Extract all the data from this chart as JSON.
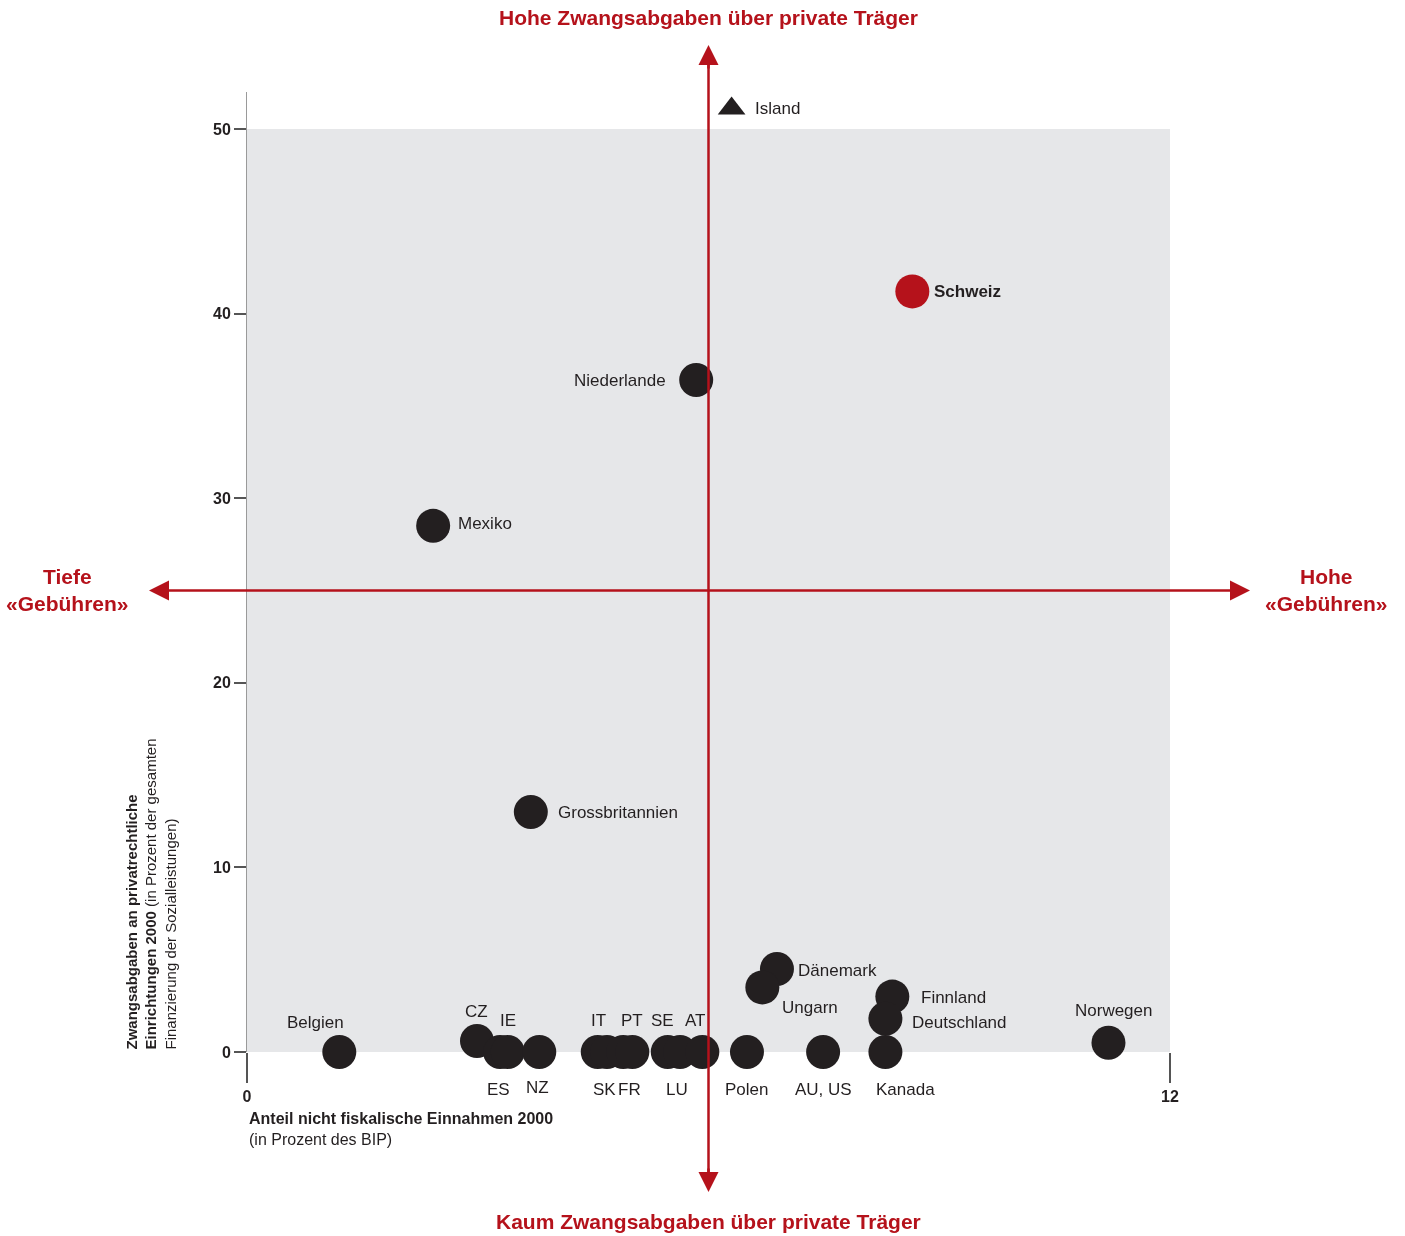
{
  "chart_data": {
    "type": "scatter",
    "xlabel": "Anteil nicht fiskalische Einnahmen 2000 (in Prozent des BIP)",
    "ylabel": "Zwangsabgaben an privatrechtliche Einrichtungen 2000 (in Prozent der gesamten Finanzierung der Sozialleistungen)",
    "xlim": [
      0,
      12
    ],
    "ylim": [
      0,
      52
    ],
    "xticks": [
      0,
      12
    ],
    "yticks": [
      0,
      10,
      20,
      30,
      40,
      50
    ],
    "marker": "circle",
    "bands": [
      {
        "axis": "y",
        "from": 0,
        "to": 50,
        "color": "#e6e7e9"
      }
    ],
    "ref_lines": [
      {
        "axis": "x",
        "value": 6,
        "color": "#b5121b"
      },
      {
        "axis": "y",
        "value": 25,
        "color": "#b5121b"
      }
    ],
    "annotations": [
      "Hohe Zwangsabgaben über private Träger",
      "Kaum Zwangsabgaben über private Träger",
      "Tiefe\n«Gebühren»",
      "Hohe\n«Gebühren»"
    ],
    "series": [
      {
        "name": "Island",
        "color": "#231f20",
        "marker": "triangle",
        "x": [
          6.3
        ],
        "values": [
          51.1
        ]
      },
      {
        "name": "Schweiz",
        "color": "#b5121b",
        "x": [
          8.65
        ],
        "values": [
          41.2
        ]
      },
      {
        "name": "Niederlande",
        "color": "#231f20",
        "x": [
          5.84
        ],
        "values": [
          36.4
        ]
      },
      {
        "name": "Mexiko",
        "color": "#231f20",
        "x": [
          2.42
        ],
        "values": [
          28.5
        ]
      },
      {
        "name": "Grossbritannien",
        "color": "#231f20",
        "x": [
          3.69
        ],
        "values": [
          13.0
        ]
      },
      {
        "name": "Dänemark",
        "color": "#231f20",
        "x": [
          6.89
        ],
        "values": [
          4.5
        ]
      },
      {
        "name": "Ungarn",
        "color": "#231f20",
        "x": [
          6.7
        ],
        "values": [
          3.5
        ]
      },
      {
        "name": "Finnland",
        "color": "#231f20",
        "x": [
          8.39
        ],
        "values": [
          3.0
        ]
      },
      {
        "name": "Deutschland",
        "color": "#231f20",
        "x": [
          8.3
        ],
        "values": [
          1.8
        ]
      },
      {
        "name": "Norwegen",
        "color": "#231f20",
        "x": [
          11.2
        ],
        "values": [
          0.5
        ]
      },
      {
        "name": "Belgien",
        "color": "#231f20",
        "x": [
          1.2
        ],
        "values": [
          0
        ]
      },
      {
        "name": "CZ",
        "color": "#231f20",
        "x": [
          2.99
        ],
        "values": [
          0.6
        ]
      },
      {
        "name": "ES",
        "color": "#231f20",
        "x": [
          3.29
        ],
        "values": [
          0
        ]
      },
      {
        "name": "IE",
        "color": "#231f20",
        "x": [
          3.39
        ],
        "values": [
          0
        ]
      },
      {
        "name": "NZ",
        "color": "#231f20",
        "x": [
          3.8
        ],
        "values": [
          0
        ]
      },
      {
        "name": "IT",
        "color": "#231f20",
        "x": [
          4.56
        ],
        "values": [
          0
        ]
      },
      {
        "name": "SK",
        "color": "#231f20",
        "x": [
          4.68
        ],
        "values": [
          0
        ]
      },
      {
        "name": "FR",
        "color": "#231f20",
        "x": [
          4.89
        ],
        "values": [
          0
        ]
      },
      {
        "name": "PT",
        "color": "#231f20",
        "x": [
          5.01
        ],
        "values": [
          0
        ]
      },
      {
        "name": "SE",
        "color": "#231f20",
        "x": [
          5.47
        ],
        "values": [
          0
        ]
      },
      {
        "name": "LU",
        "color": "#231f20",
        "x": [
          5.63
        ],
        "values": [
          0
        ]
      },
      {
        "name": "AT",
        "color": "#231f20",
        "x": [
          5.92
        ],
        "values": [
          0
        ]
      },
      {
        "name": "Polen",
        "color": "#231f20",
        "x": [
          6.5
        ],
        "values": [
          0
        ]
      },
      {
        "name": "AU, US",
        "color": "#231f20",
        "x": [
          7.49
        ],
        "values": [
          0
        ]
      },
      {
        "name": "Kanada",
        "color": "#231f20",
        "x": [
          8.3
        ],
        "values": [
          0
        ]
      }
    ]
  }
}
